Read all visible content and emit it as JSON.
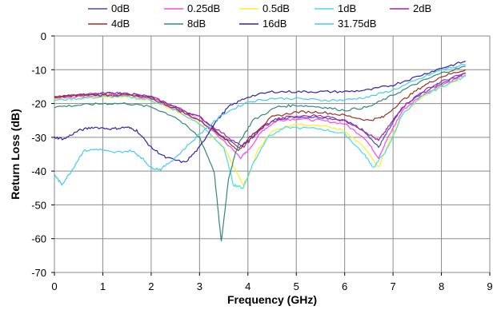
{
  "chart_data": {
    "type": "line",
    "title": "",
    "xlabel": "Frequency (GHz)",
    "ylabel": "Return Loss (dB)",
    "xlim": [
      0,
      9
    ],
    "ylim": [
      -70,
      0
    ],
    "xticks": [
      0,
      1,
      2,
      3,
      4,
      5,
      6,
      7,
      8,
      9
    ],
    "yticks": [
      0,
      -10,
      -20,
      -30,
      -40,
      -50,
      -60,
      -70
    ],
    "grid": true,
    "legend_position": "top",
    "series": [
      {
        "name": "0dB",
        "color": "#4b4bb0",
        "points": [
          [
            0.0,
            -18
          ],
          [
            0.5,
            -17.5
          ],
          [
            1.0,
            -17
          ],
          [
            1.5,
            -17
          ],
          [
            2.0,
            -18
          ],
          [
            2.5,
            -21
          ],
          [
            3.0,
            -24
          ],
          [
            3.5,
            -30
          ],
          [
            3.8,
            -33
          ],
          [
            4.0,
            -31
          ],
          [
            4.3,
            -27
          ],
          [
            4.6,
            -24.5
          ],
          [
            5.0,
            -24
          ],
          [
            5.5,
            -24
          ],
          [
            6.0,
            -25
          ],
          [
            6.4,
            -28
          ],
          [
            6.7,
            -33
          ],
          [
            6.9,
            -28
          ],
          [
            7.2,
            -21
          ],
          [
            7.6,
            -17
          ],
          [
            8.0,
            -14
          ],
          [
            8.5,
            -11
          ]
        ]
      },
      {
        "name": "0.25dB",
        "color": "#ff44ee",
        "points": [
          [
            0.0,
            -18.5
          ],
          [
            0.5,
            -18
          ],
          [
            1.0,
            -17.5
          ],
          [
            1.5,
            -17.5
          ],
          [
            2.0,
            -18.5
          ],
          [
            2.5,
            -21.5
          ],
          [
            3.0,
            -25
          ],
          [
            3.5,
            -31
          ],
          [
            3.85,
            -36
          ],
          [
            4.0,
            -34
          ],
          [
            4.3,
            -28
          ],
          [
            4.6,
            -25
          ],
          [
            5.0,
            -24.5
          ],
          [
            5.5,
            -25
          ],
          [
            6.0,
            -26
          ],
          [
            6.4,
            -30
          ],
          [
            6.7,
            -36
          ],
          [
            6.9,
            -30
          ],
          [
            7.2,
            -22
          ],
          [
            7.6,
            -17.5
          ],
          [
            8.0,
            -14.5
          ],
          [
            8.5,
            -11.5
          ]
        ]
      },
      {
        "name": "0.5dB",
        "color": "#ffee22",
        "points": [
          [
            0.0,
            -19
          ],
          [
            0.5,
            -18.5
          ],
          [
            1.0,
            -18
          ],
          [
            1.5,
            -18
          ],
          [
            2.0,
            -19
          ],
          [
            2.5,
            -22
          ],
          [
            3.0,
            -26
          ],
          [
            3.5,
            -33
          ],
          [
            3.9,
            -44
          ],
          [
            4.0,
            -42
          ],
          [
            4.2,
            -34
          ],
          [
            4.5,
            -28
          ],
          [
            5.0,
            -26
          ],
          [
            5.5,
            -26.5
          ],
          [
            6.0,
            -28
          ],
          [
            6.4,
            -33
          ],
          [
            6.7,
            -39
          ],
          [
            6.9,
            -32
          ],
          [
            7.2,
            -23
          ],
          [
            7.6,
            -18
          ],
          [
            8.0,
            -15
          ],
          [
            8.5,
            -12
          ]
        ]
      },
      {
        "name": "1dB",
        "color": "#44ddee",
        "points": [
          [
            0.0,
            -19
          ],
          [
            0.5,
            -18.5
          ],
          [
            1.0,
            -18
          ],
          [
            1.5,
            -18
          ],
          [
            2.0,
            -19
          ],
          [
            2.5,
            -22
          ],
          [
            3.0,
            -26
          ],
          [
            3.5,
            -33
          ],
          [
            3.7,
            -44
          ],
          [
            3.9,
            -45
          ],
          [
            4.1,
            -38
          ],
          [
            4.4,
            -30
          ],
          [
            4.8,
            -27
          ],
          [
            5.5,
            -27.5
          ],
          [
            6.0,
            -29
          ],
          [
            6.4,
            -35
          ],
          [
            6.6,
            -39
          ],
          [
            6.9,
            -33
          ],
          [
            7.2,
            -23
          ],
          [
            7.6,
            -18
          ],
          [
            8.0,
            -15
          ],
          [
            8.5,
            -12
          ]
        ]
      },
      {
        "name": "2dB",
        "color": "#aa22aa",
        "points": [
          [
            0.0,
            -18
          ],
          [
            0.5,
            -17.5
          ],
          [
            1.0,
            -17
          ],
          [
            1.5,
            -17
          ],
          [
            2.0,
            -18
          ],
          [
            2.5,
            -21
          ],
          [
            3.0,
            -24
          ],
          [
            3.5,
            -29
          ],
          [
            3.9,
            -33
          ],
          [
            4.1,
            -30
          ],
          [
            4.4,
            -26
          ],
          [
            4.8,
            -24
          ],
          [
            5.5,
            -23.5
          ],
          [
            6.0,
            -25
          ],
          [
            6.4,
            -28
          ],
          [
            6.7,
            -31
          ],
          [
            6.9,
            -27
          ],
          [
            7.2,
            -21
          ],
          [
            7.6,
            -16.5
          ],
          [
            8.0,
            -13.5
          ],
          [
            8.5,
            -11
          ]
        ]
      },
      {
        "name": "4dB",
        "color": "#993322",
        "points": [
          [
            0.0,
            -18
          ],
          [
            0.5,
            -17.5
          ],
          [
            1.0,
            -17.5
          ],
          [
            1.5,
            -17.5
          ],
          [
            2.0,
            -18.5
          ],
          [
            2.5,
            -21.5
          ],
          [
            3.0,
            -25
          ],
          [
            3.5,
            -30
          ],
          [
            3.8,
            -34
          ],
          [
            4.1,
            -29
          ],
          [
            4.5,
            -24
          ],
          [
            5.0,
            -22.5
          ],
          [
            5.5,
            -22.5
          ],
          [
            6.0,
            -23.5
          ],
          [
            6.5,
            -25
          ],
          [
            6.8,
            -24
          ],
          [
            7.2,
            -19
          ],
          [
            7.6,
            -15
          ],
          [
            8.0,
            -12
          ],
          [
            8.5,
            -10
          ]
        ]
      },
      {
        "name": "8dB",
        "color": "#338877",
        "points": [
          [
            0.0,
            -21
          ],
          [
            0.5,
            -20.5
          ],
          [
            1.0,
            -20
          ],
          [
            1.5,
            -20
          ],
          [
            2.0,
            -21
          ],
          [
            2.5,
            -24
          ],
          [
            3.0,
            -30
          ],
          [
            3.3,
            -40
          ],
          [
            3.45,
            -61
          ],
          [
            3.6,
            -42
          ],
          [
            3.8,
            -32
          ],
          [
            4.1,
            -25
          ],
          [
            4.6,
            -21
          ],
          [
            5.0,
            -20.5
          ],
          [
            5.5,
            -21
          ],
          [
            6.0,
            -22
          ],
          [
            6.5,
            -21
          ],
          [
            7.0,
            -17.5
          ],
          [
            7.5,
            -14
          ],
          [
            8.0,
            -11
          ],
          [
            8.5,
            -9
          ]
        ]
      },
      {
        "name": "16dB",
        "color": "#3322aa",
        "points": [
          [
            0.0,
            -30
          ],
          [
            0.2,
            -30.5
          ],
          [
            0.5,
            -28
          ],
          [
            0.8,
            -27
          ],
          [
            1.2,
            -27.5
          ],
          [
            1.5,
            -27
          ],
          [
            1.7,
            -28
          ],
          [
            2.0,
            -33
          ],
          [
            2.3,
            -36
          ],
          [
            2.7,
            -37.5
          ],
          [
            3.0,
            -33
          ],
          [
            3.3,
            -26
          ],
          [
            3.6,
            -21
          ],
          [
            4.0,
            -18
          ],
          [
            4.5,
            -16.5
          ],
          [
            5.0,
            -16.5
          ],
          [
            5.5,
            -16.5
          ],
          [
            6.0,
            -16.5
          ],
          [
            6.5,
            -16
          ],
          [
            7.0,
            -14.5
          ],
          [
            7.5,
            -12
          ],
          [
            8.0,
            -9.5
          ],
          [
            8.5,
            -7.5
          ]
        ]
      },
      {
        "name": "31.75dB",
        "color": "#44ccee",
        "points": [
          [
            0.0,
            -41
          ],
          [
            0.15,
            -44
          ],
          [
            0.35,
            -40
          ],
          [
            0.6,
            -34
          ],
          [
            0.9,
            -33.5
          ],
          [
            1.2,
            -34.5
          ],
          [
            1.6,
            -34
          ],
          [
            1.8,
            -36
          ],
          [
            2.0,
            -39
          ],
          [
            2.2,
            -39.5
          ],
          [
            2.5,
            -36
          ],
          [
            3.0,
            -29
          ],
          [
            3.5,
            -23
          ],
          [
            4.0,
            -19.5
          ],
          [
            4.5,
            -18.5
          ],
          [
            5.0,
            -18.5
          ],
          [
            5.5,
            -19
          ],
          [
            6.0,
            -19
          ],
          [
            6.5,
            -18
          ],
          [
            7.0,
            -16
          ],
          [
            7.5,
            -13
          ],
          [
            8.0,
            -10
          ],
          [
            8.5,
            -8.5
          ]
        ]
      }
    ]
  }
}
